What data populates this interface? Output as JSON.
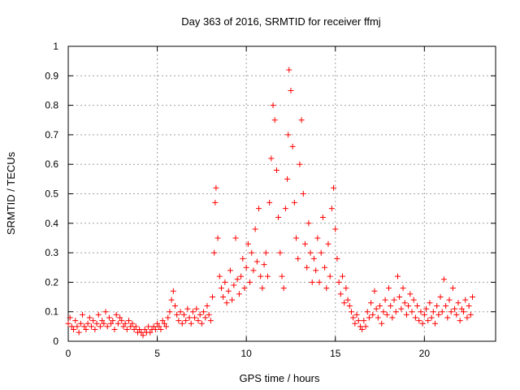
{
  "chart_data": {
    "type": "scatter",
    "title": "Day 363 of 2016, SRMTID for receiver ffmj",
    "xlabel": "GPS time / hours",
    "ylabel": "SRMTID / TECUs",
    "xlim": [
      0,
      24
    ],
    "ylim": [
      0,
      1
    ],
    "xticks": [
      0,
      5,
      10,
      15,
      20
    ],
    "xtick_labels": [
      "0",
      "5",
      "10",
      "15",
      "20"
    ],
    "yticks": [
      0,
      0.1,
      0.2,
      0.3,
      0.4,
      0.5,
      0.6,
      0.7,
      0.8,
      0.9,
      1
    ],
    "ytick_labels": [
      "0",
      "0.1",
      "0.2",
      "0.3",
      "0.4",
      "0.5",
      "0.6",
      "0.7",
      "0.8",
      "0.9",
      "1"
    ],
    "grid": true,
    "marker": "+",
    "color": "#ff0000",
    "series": [
      {
        "name": "SRMTID",
        "x": [
          0.0,
          0.1,
          0.2,
          0.3,
          0.4,
          0.5,
          0.6,
          0.7,
          0.8,
          0.9,
          1.0,
          1.1,
          1.2,
          1.3,
          1.4,
          1.5,
          1.6,
          1.7,
          1.8,
          1.9,
          2.0,
          2.1,
          2.2,
          2.3,
          2.4,
          2.5,
          2.6,
          2.7,
          2.8,
          2.9,
          3.0,
          3.1,
          3.2,
          3.3,
          3.4,
          3.5,
          3.6,
          3.7,
          3.8,
          3.9,
          4.0,
          4.1,
          4.2,
          4.3,
          4.4,
          4.5,
          4.6,
          4.7,
          4.8,
          4.9,
          5.0,
          5.1,
          5.2,
          5.3,
          5.4,
          5.5,
          5.6,
          5.7,
          5.8,
          5.9,
          6.0,
          6.1,
          6.2,
          6.3,
          6.4,
          6.5,
          6.6,
          6.7,
          6.8,
          6.9,
          7.0,
          7.1,
          7.2,
          7.3,
          7.4,
          7.5,
          7.6,
          7.7,
          7.8,
          7.9,
          8.0,
          8.1,
          8.2,
          8.25,
          8.3,
          8.4,
          8.5,
          8.6,
          8.7,
          8.8,
          8.9,
          9.0,
          9.1,
          9.2,
          9.3,
          9.4,
          9.5,
          9.6,
          9.7,
          9.8,
          9.9,
          10.0,
          10.1,
          10.2,
          10.3,
          10.4,
          10.5,
          10.6,
          10.7,
          10.8,
          10.9,
          11.0,
          11.1,
          11.2,
          11.3,
          11.4,
          11.5,
          11.6,
          11.7,
          11.8,
          11.9,
          12.0,
          12.1,
          12.2,
          12.3,
          12.35,
          12.4,
          12.5,
          12.6,
          12.7,
          12.8,
          12.9,
          13.0,
          13.1,
          13.2,
          13.3,
          13.4,
          13.5,
          13.6,
          13.7,
          13.8,
          13.9,
          14.0,
          14.1,
          14.2,
          14.3,
          14.4,
          14.5,
          14.6,
          14.7,
          14.8,
          14.9,
          15.0,
          15.1,
          15.2,
          15.3,
          15.4,
          15.5,
          15.6,
          15.7,
          15.8,
          15.9,
          16.0,
          16.1,
          16.2,
          16.3,
          16.4,
          16.5,
          16.6,
          16.7,
          16.8,
          16.9,
          17.0,
          17.1,
          17.2,
          17.3,
          17.4,
          17.5,
          17.6,
          17.7,
          17.8,
          17.9,
          18.0,
          18.1,
          18.2,
          18.3,
          18.4,
          18.5,
          18.6,
          18.7,
          18.8,
          18.9,
          19.0,
          19.1,
          19.2,
          19.3,
          19.4,
          19.5,
          19.6,
          19.7,
          19.8,
          19.9,
          20.0,
          20.1,
          20.2,
          20.3,
          20.4,
          20.5,
          20.6,
          20.7,
          20.8,
          20.9,
          21.0,
          21.1,
          21.2,
          21.3,
          21.4,
          21.5,
          21.6,
          21.7,
          21.8,
          21.9,
          22.0,
          22.1,
          22.2,
          22.3,
          22.4,
          22.5,
          22.6,
          22.7
        ],
        "y": [
          0.06,
          0.08,
          0.05,
          0.04,
          0.07,
          0.05,
          0.03,
          0.06,
          0.09,
          0.05,
          0.04,
          0.06,
          0.08,
          0.05,
          0.07,
          0.04,
          0.06,
          0.09,
          0.05,
          0.07,
          0.06,
          0.1,
          0.05,
          0.08,
          0.06,
          0.07,
          0.04,
          0.09,
          0.06,
          0.08,
          0.07,
          0.05,
          0.06,
          0.04,
          0.07,
          0.05,
          0.06,
          0.04,
          0.05,
          0.03,
          0.04,
          0.03,
          0.02,
          0.04,
          0.03,
          0.05,
          0.03,
          0.04,
          0.05,
          0.04,
          0.06,
          0.05,
          0.04,
          0.07,
          0.06,
          0.05,
          0.08,
          0.1,
          0.14,
          0.17,
          0.12,
          0.09,
          0.07,
          0.1,
          0.06,
          0.09,
          0.07,
          0.11,
          0.08,
          0.06,
          0.1,
          0.08,
          0.11,
          0.07,
          0.09,
          0.06,
          0.1,
          0.08,
          0.12,
          0.09,
          0.07,
          0.15,
          0.3,
          0.47,
          0.52,
          0.35,
          0.22,
          0.18,
          0.15,
          0.2,
          0.13,
          0.17,
          0.24,
          0.14,
          0.19,
          0.35,
          0.21,
          0.16,
          0.22,
          0.28,
          0.18,
          0.25,
          0.33,
          0.2,
          0.3,
          0.24,
          0.38,
          0.27,
          0.45,
          0.22,
          0.18,
          0.26,
          0.3,
          0.22,
          0.47,
          0.62,
          0.8,
          0.75,
          0.58,
          0.42,
          0.3,
          0.22,
          0.18,
          0.45,
          0.55,
          0.7,
          0.92,
          0.85,
          0.66,
          0.47,
          0.35,
          0.28,
          0.6,
          0.75,
          0.5,
          0.33,
          0.25,
          0.4,
          0.3,
          0.2,
          0.28,
          0.24,
          0.35,
          0.2,
          0.3,
          0.42,
          0.25,
          0.18,
          0.33,
          0.22,
          0.45,
          0.52,
          0.38,
          0.28,
          0.2,
          0.16,
          0.22,
          0.13,
          0.18,
          0.14,
          0.12,
          0.1,
          0.08,
          0.06,
          0.09,
          0.07,
          0.05,
          0.04,
          0.07,
          0.05,
          0.1,
          0.08,
          0.13,
          0.09,
          0.17,
          0.11,
          0.08,
          0.12,
          0.06,
          0.1,
          0.14,
          0.09,
          0.18,
          0.12,
          0.08,
          0.14,
          0.1,
          0.22,
          0.15,
          0.11,
          0.18,
          0.13,
          0.09,
          0.12,
          0.16,
          0.1,
          0.14,
          0.08,
          0.12,
          0.07,
          0.1,
          0.06,
          0.09,
          0.11,
          0.07,
          0.13,
          0.08,
          0.1,
          0.06,
          0.12,
          0.09,
          0.15,
          0.1,
          0.21,
          0.12,
          0.08,
          0.14,
          0.1,
          0.18,
          0.11,
          0.09,
          0.13,
          0.07,
          0.11,
          0.1,
          0.14,
          0.08,
          0.12,
          0.09,
          0.15
        ]
      }
    ]
  }
}
